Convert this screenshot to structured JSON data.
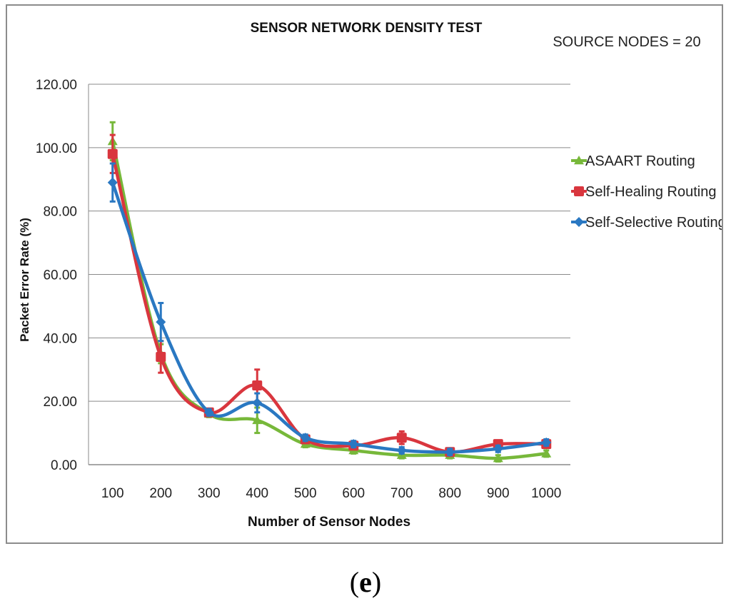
{
  "chart_data": {
    "type": "line",
    "title": "SENSOR NETWORK DENSITY TEST",
    "annotation": "SOURCE NODES = 20",
    "xlabel": "Number of Sensor Nodes",
    "ylabel": "Packet Error Rate (%)",
    "categories": [
      "100",
      "200",
      "300",
      "400",
      "500",
      "600",
      "700",
      "800",
      "900",
      "1000"
    ],
    "ylim": [
      0,
      120
    ],
    "yticks": [
      "0.00",
      "20.00",
      "40.00",
      "60.00",
      "80.00",
      "100.00",
      "120.00"
    ],
    "grid": true,
    "legend_position": "right",
    "series": [
      {
        "name": "ASAART Routing",
        "color": "#77b83a",
        "marker": "triangle",
        "values": [
          102,
          35,
          16,
          14,
          6.5,
          4.5,
          3,
          3,
          2,
          3.5
        ],
        "errors": [
          6,
          3,
          1,
          4,
          1,
          1,
          1,
          1,
          1,
          1
        ]
      },
      {
        "name": "Self-Healing Routing",
        "color": "#d9363e",
        "marker": "square",
        "values": [
          98,
          34,
          16.5,
          25,
          8,
          6,
          8.5,
          4,
          6.5,
          6.5
        ],
        "errors": [
          6,
          5,
          1,
          5,
          1,
          1,
          2,
          1,
          1,
          1
        ]
      },
      {
        "name": "Self-Selective Routing",
        "color": "#2a78c2",
        "marker": "diamond",
        "values": [
          89,
          45,
          16.5,
          19.5,
          8.5,
          6.5,
          4.5,
          4,
          5,
          7
        ],
        "errors": [
          6,
          6,
          1,
          3,
          1,
          1,
          1,
          1,
          1,
          1
        ]
      }
    ]
  },
  "figure": {
    "caption_open": "(",
    "caption_label": "e",
    "caption_close": ")"
  }
}
